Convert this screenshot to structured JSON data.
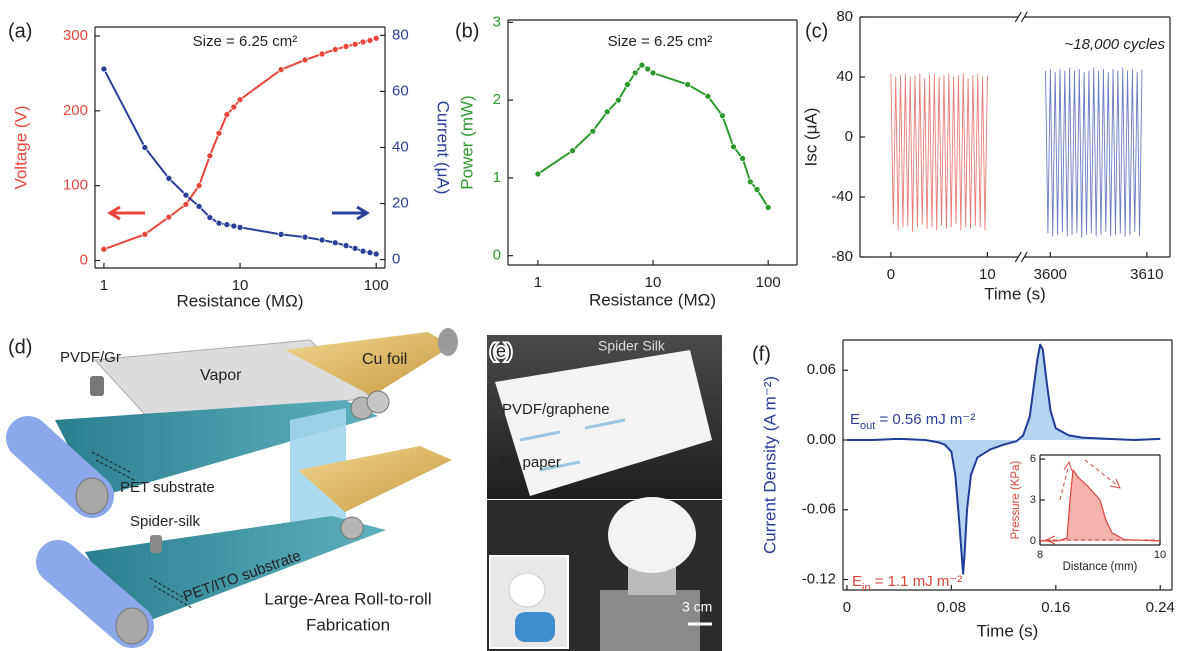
{
  "chart_data": [
    {
      "type": "line",
      "panel_label": "(a)",
      "xlabel": "Resistance (MΩ)",
      "ylabel": "Voltage (V)",
      "y2label": "Current (μA)",
      "annotations": [
        "Size = 6.25 cm²"
      ],
      "xlog": true,
      "markers": true,
      "xlim": [
        0.86,
        116
      ],
      "xticks": [
        1,
        10,
        100
      ],
      "ylim": [
        -10,
        312
      ],
      "yticks": [
        0,
        100,
        200,
        300
      ],
      "ycolor": "#e8463a",
      "y2lim": [
        -3,
        83
      ],
      "y2ticks": [
        0,
        20,
        40,
        60,
        80
      ],
      "y2color": "#2a3f98",
      "x": [
        1,
        2,
        3,
        4,
        5,
        6,
        7,
        8,
        9,
        10,
        20,
        30,
        40,
        50,
        60,
        70,
        80,
        90,
        100
      ],
      "series": [
        {
          "color": "#e8463a",
          "values": [
            15,
            35,
            58,
            75,
            100,
            140,
            170,
            195,
            205,
            215,
            255,
            268,
            276,
            282,
            286,
            289,
            292,
            294,
            297
          ]
        },
        {
          "color": "#2a3f98",
          "axis": "y2",
          "values": [
            68,
            40,
            29,
            23,
            19,
            15,
            13,
            12.5,
            12,
            11.5,
            9,
            8,
            7,
            6,
            5,
            4,
            3,
            2.5,
            2
          ]
        }
      ]
    },
    {
      "type": "line",
      "panel_label": "(b)",
      "xlabel": "Resistance (MΩ)",
      "ylabel": "Power (mW)",
      "annotations": [
        "Size = 6.25 cm²"
      ],
      "xlog": true,
      "markers": true,
      "xlim": [
        0.55,
        178
      ],
      "xticks": [
        1,
        10,
        100
      ],
      "ylim": [
        -0.12,
        3.03
      ],
      "yticks": [
        0,
        1,
        2,
        3
      ],
      "ycolor": "#2e9a2e",
      "x": [
        1,
        2,
        3,
        4,
        5,
        6,
        7,
        8,
        9,
        10,
        20,
        30,
        40,
        50,
        60,
        70,
        80,
        100
      ],
      "series": [
        {
          "color": "#2e9a2e",
          "values": [
            1.05,
            1.35,
            1.6,
            1.85,
            2.0,
            2.2,
            2.35,
            2.45,
            2.4,
            2.35,
            2.2,
            2.05,
            1.8,
            1.4,
            1.25,
            0.95,
            0.85,
            0.62
          ]
        }
      ]
    },
    {
      "type": "line",
      "panel_label": "(c)",
      "xlabel": "Time (s)",
      "ylabel": "Isc (μA)",
      "annotations": [
        "~18,000 cycles"
      ],
      "annotation_italic": true,
      "segments": [
        {
          "xlim": [
            -3.2,
            13.2
          ],
          "xticks": [
            0,
            10
          ]
        },
        {
          "xlim": [
            3597.3,
            3612.4
          ],
          "xticks": [
            3600,
            3610
          ]
        }
      ],
      "ylim": [
        -80,
        80
      ],
      "yticks": [
        -80,
        -40,
        0,
        40,
        80
      ],
      "series": [
        {
          "color": "#e0524a",
          "segment": 0,
          "x": [
            0,
            0.25,
            0.5,
            0.75,
            1,
            1.25,
            1.5,
            1.75,
            2,
            2.25,
            2.5,
            2.75,
            3,
            3.25,
            3.5,
            3.75,
            4,
            4.25,
            4.5,
            4.75,
            5,
            5.25,
            5.5,
            5.75,
            6,
            6.25,
            6.5,
            6.75,
            7,
            7.25,
            7.5,
            7.75,
            8,
            8.25,
            8.5,
            8.75,
            9,
            9.25,
            9.5,
            9.75,
            10
          ],
          "values": [
            42,
            -58,
            40,
            -62,
            41,
            -60,
            42,
            -59,
            40,
            -63,
            41,
            -60,
            42,
            -58,
            39,
            -61,
            41,
            -60,
            42,
            -62,
            40,
            -59,
            41,
            -61,
            42,
            -60,
            40,
            -58,
            41,
            -62,
            42,
            -60,
            39,
            -61,
            41,
            -59,
            42,
            -60,
            40,
            -62,
            41
          ]
        },
        {
          "color": "#3a4fb0",
          "segment": 1,
          "x": [
            3599.5,
            3599.75,
            3600,
            3600.25,
            3600.5,
            3600.75,
            3601,
            3601.25,
            3601.5,
            3601.75,
            3602,
            3602.25,
            3602.5,
            3602.75,
            3603,
            3603.25,
            3603.5,
            3603.75,
            3604,
            3604.25,
            3604.5,
            3604.75,
            3605,
            3605.25,
            3605.5,
            3605.75,
            3606,
            3606.25,
            3606.5,
            3606.75,
            3607,
            3607.25,
            3607.5,
            3607.75,
            3608,
            3608.25,
            3608.5,
            3608.75,
            3609,
            3609.25,
            3609.5
          ],
          "values": [
            44,
            -64,
            45,
            -66,
            43,
            -65,
            45,
            -63,
            44,
            -66,
            46,
            -65,
            44,
            -64,
            45,
            -67,
            43,
            -65,
            44,
            -64,
            46,
            -66,
            44,
            -65,
            45,
            -63,
            43,
            -66,
            45,
            -65,
            44,
            -64,
            46,
            -66,
            44,
            -65,
            45,
            -63,
            43,
            -66,
            45
          ]
        }
      ]
    },
    {
      "type": "line",
      "panel_label": "(f)",
      "xlabel": "Time (s)",
      "ylabel": "Current Density (A m⁻²)",
      "ylabel_color": "#2a3f98",
      "fill": "#a9cdee",
      "annotations": [
        {
          "base": "E",
          "sub": "out",
          "rest": " = 0.56 mJ m⁻²",
          "color": "#2a3f98"
        },
        {
          "base": "E",
          "sub": "in",
          "rest": " = 1.1 mJ m⁻²",
          "color": "#d8463c"
        }
      ],
      "xlim": [
        -0.003,
        0.249
      ],
      "xticks": [
        0,
        0.08,
        0.16,
        0.24
      ],
      "ylim": [
        -0.129,
        0.086
      ],
      "yticks": [
        {
          "value": -0.12,
          "label": "-0.12"
        },
        {
          "value": -0.06,
          "label": "-0.06"
        },
        {
          "value": 0,
          "label": "0.00"
        },
        {
          "value": 0.06,
          "label": "0.06"
        }
      ],
      "x": [
        0,
        0.02,
        0.04,
        0.06,
        0.07,
        0.075,
        0.08,
        0.083,
        0.086,
        0.088,
        0.089,
        0.09,
        0.092,
        0.095,
        0.1,
        0.11,
        0.12,
        0.13,
        0.135,
        0.14,
        0.143,
        0.146,
        0.148,
        0.15,
        0.153,
        0.156,
        0.16,
        0.17,
        0.18,
        0.2,
        0.22,
        0.24
      ],
      "series": [
        {
          "color": "#1f3c96",
          "values": [
            0,
            0,
            0.001,
            0,
            -0.002,
            -0.004,
            -0.01,
            -0.03,
            -0.07,
            -0.1,
            -0.115,
            -0.1,
            -0.06,
            -0.03,
            -0.015,
            -0.008,
            -0.004,
            -0.001,
            0.004,
            0.02,
            0.045,
            0.07,
            0.082,
            0.078,
            0.05,
            0.025,
            0.01,
            0.004,
            0.002,
            0.001,
            0,
            0.001
          ]
        }
      ]
    },
    {
      "type": "line",
      "xlabel": "Distance (mm)",
      "ylabel": "Pressure (KPa)",
      "ylabel_color": "#d8463c",
      "fill": "#f4a6a0",
      "xlim": [
        8,
        10
      ],
      "xticks": [
        8,
        10
      ],
      "ylim": [
        -0.3,
        6.3
      ],
      "yticks": [
        0,
        3,
        6
      ],
      "x": [
        8,
        8.3,
        8.45,
        8.5,
        8.55,
        8.65,
        8.8,
        9.0,
        9.1,
        9.2,
        9.4,
        10
      ],
      "series": [
        {
          "color": "#d8463c",
          "values": [
            0,
            0,
            0.2,
            3,
            5.2,
            4.6,
            4,
            3,
            1.5,
            0.6,
            0.1,
            0
          ]
        }
      ]
    }
  ],
  "schematic": {
    "panel_label": "(d)",
    "labels": [
      "PVDF/Gr",
      "Vapor",
      "Cu foil",
      "PET substrate",
      "Spider-silk",
      "PET/ITO substrate",
      "Large-Area Roll-to-roll",
      "Fabrication"
    ]
  },
  "photo": {
    "panel_label": "(e)",
    "labels": [
      "Spider Silk",
      "PVDF/graphene",
      "A5 paper",
      "3 cm"
    ]
  }
}
